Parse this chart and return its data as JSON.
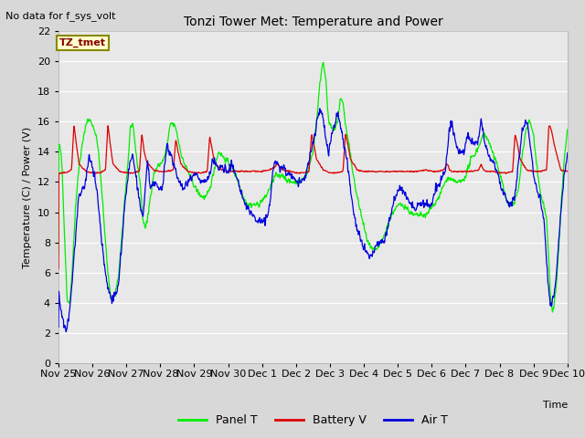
{
  "title": "Tonzi Tower Met: Temperature and Power",
  "ylabel": "Temperature (C) / Power (V)",
  "xlabel": "Time",
  "no_data_text": "No data for f_sys_volt",
  "legend_label_text": "TZ_tmet",
  "ylim": [
    0,
    22
  ],
  "yticks": [
    0,
    2,
    4,
    6,
    8,
    10,
    12,
    14,
    16,
    18,
    20,
    22
  ],
  "xtick_labels": [
    "Nov 25",
    "Nov 26",
    "Nov 27",
    "Nov 28",
    "Nov 29",
    "Nov 30",
    "Dec 1",
    "Dec 2",
    "Dec 3",
    "Dec 4",
    "Dec 5",
    "Dec 6",
    "Dec 7",
    "Dec 8",
    "Dec 9",
    "Dec 10"
  ],
  "bg_color": "#d8d8d8",
  "plot_bg_color": "#e8e8e8",
  "green_color": "#00ee00",
  "red_color": "#dd0000",
  "blue_color": "#0000dd",
  "legend_items": [
    "Panel T",
    "Battery V",
    "Air T"
  ],
  "keypoints_panel": [
    [
      0.0,
      14.5
    ],
    [
      0.05,
      14.2
    ],
    [
      0.1,
      13.0
    ],
    [
      0.18,
      8.0
    ],
    [
      0.25,
      4.2
    ],
    [
      0.33,
      4.0
    ],
    [
      0.42,
      7.0
    ],
    [
      0.5,
      10.5
    ],
    [
      0.6,
      13.0
    ],
    [
      0.7,
      14.5
    ],
    [
      0.82,
      16.0
    ],
    [
      0.9,
      16.1
    ],
    [
      0.95,
      16.0
    ],
    [
      1.05,
      15.5
    ],
    [
      1.15,
      14.5
    ],
    [
      1.25,
      12.0
    ],
    [
      1.35,
      9.0
    ],
    [
      1.45,
      6.0
    ],
    [
      1.55,
      4.2
    ],
    [
      1.65,
      4.5
    ],
    [
      1.75,
      5.5
    ],
    [
      1.85,
      8.0
    ],
    [
      1.95,
      11.0
    ],
    [
      2.05,
      13.5
    ],
    [
      2.12,
      15.8
    ],
    [
      2.2,
      15.5
    ],
    [
      2.3,
      13.5
    ],
    [
      2.4,
      12.0
    ],
    [
      2.48,
      9.5
    ],
    [
      2.55,
      9.0
    ],
    [
      2.62,
      9.5
    ],
    [
      2.7,
      11.0
    ],
    [
      2.8,
      12.5
    ],
    [
      2.9,
      13.0
    ],
    [
      3.0,
      13.2
    ],
    [
      3.1,
      13.5
    ],
    [
      3.2,
      14.5
    ],
    [
      3.3,
      15.9
    ],
    [
      3.38,
      15.8
    ],
    [
      3.45,
      15.6
    ],
    [
      3.55,
      14.5
    ],
    [
      3.65,
      13.5
    ],
    [
      3.75,
      13.0
    ],
    [
      3.85,
      12.5
    ],
    [
      3.95,
      12.0
    ],
    [
      4.05,
      11.5
    ],
    [
      4.15,
      11.2
    ],
    [
      4.25,
      11.0
    ],
    [
      4.35,
      11.0
    ],
    [
      4.45,
      11.5
    ],
    [
      4.55,
      12.5
    ],
    [
      4.65,
      13.5
    ],
    [
      4.72,
      14.0
    ],
    [
      4.8,
      13.8
    ],
    [
      4.9,
      13.5
    ],
    [
      5.0,
      13.3
    ],
    [
      5.1,
      13.0
    ],
    [
      5.2,
      12.5
    ],
    [
      5.3,
      12.0
    ],
    [
      5.4,
      11.2
    ],
    [
      5.5,
      10.8
    ],
    [
      5.6,
      10.5
    ],
    [
      5.7,
      10.5
    ],
    [
      5.8,
      10.5
    ],
    [
      5.9,
      10.5
    ],
    [
      6.0,
      10.8
    ],
    [
      6.1,
      11.0
    ],
    [
      6.2,
      11.5
    ],
    [
      6.3,
      12.0
    ],
    [
      6.4,
      12.5
    ],
    [
      6.5,
      12.3
    ],
    [
      6.6,
      12.5
    ],
    [
      6.7,
      12.2
    ],
    [
      6.8,
      12.0
    ],
    [
      6.9,
      12.0
    ],
    [
      7.0,
      12.0
    ],
    [
      7.1,
      12.0
    ],
    [
      7.2,
      12.2
    ],
    [
      7.3,
      12.5
    ],
    [
      7.4,
      13.2
    ],
    [
      7.5,
      14.0
    ],
    [
      7.62,
      16.5
    ],
    [
      7.72,
      19.0
    ],
    [
      7.8,
      20.1
    ],
    [
      7.88,
      18.5
    ],
    [
      7.95,
      16.0
    ],
    [
      8.05,
      15.5
    ],
    [
      8.15,
      15.5
    ],
    [
      8.22,
      16.0
    ],
    [
      8.3,
      17.5
    ],
    [
      8.38,
      17.3
    ],
    [
      8.45,
      15.8
    ],
    [
      8.55,
      14.5
    ],
    [
      8.65,
      13.0
    ],
    [
      8.75,
      11.5
    ],
    [
      8.85,
      10.5
    ],
    [
      8.95,
      9.5
    ],
    [
      9.05,
      8.5
    ],
    [
      9.15,
      7.8
    ],
    [
      9.25,
      7.5
    ],
    [
      9.35,
      7.5
    ],
    [
      9.45,
      7.8
    ],
    [
      9.55,
      8.2
    ],
    [
      9.65,
      8.8
    ],
    [
      9.75,
      9.5
    ],
    [
      9.85,
      10.0
    ],
    [
      9.95,
      10.3
    ],
    [
      10.05,
      10.5
    ],
    [
      10.15,
      10.5
    ],
    [
      10.25,
      10.3
    ],
    [
      10.35,
      10.0
    ],
    [
      10.45,
      9.8
    ],
    [
      10.55,
      9.8
    ],
    [
      10.65,
      9.8
    ],
    [
      10.75,
      9.8
    ],
    [
      10.85,
      9.8
    ],
    [
      10.95,
      10.2
    ],
    [
      11.05,
      10.5
    ],
    [
      11.15,
      10.8
    ],
    [
      11.25,
      11.2
    ],
    [
      11.35,
      11.8
    ],
    [
      11.45,
      12.2
    ],
    [
      11.55,
      12.2
    ],
    [
      11.65,
      12.0
    ],
    [
      11.75,
      12.0
    ],
    [
      11.85,
      12.0
    ],
    [
      11.95,
      12.2
    ],
    [
      12.05,
      12.8
    ],
    [
      12.15,
      13.5
    ],
    [
      12.25,
      13.8
    ],
    [
      12.35,
      14.2
    ],
    [
      12.45,
      14.8
    ],
    [
      12.55,
      15.2
    ],
    [
      12.65,
      14.8
    ],
    [
      12.75,
      14.2
    ],
    [
      12.85,
      13.5
    ],
    [
      12.95,
      13.0
    ],
    [
      13.05,
      12.2
    ],
    [
      13.15,
      11.2
    ],
    [
      13.25,
      10.5
    ],
    [
      13.35,
      10.5
    ],
    [
      13.45,
      10.8
    ],
    [
      13.55,
      11.5
    ],
    [
      13.65,
      13.5
    ],
    [
      13.75,
      15.2
    ],
    [
      13.85,
      16.0
    ],
    [
      13.92,
      15.8
    ],
    [
      14.0,
      15.0
    ],
    [
      14.1,
      13.0
    ],
    [
      14.2,
      11.2
    ],
    [
      14.3,
      10.5
    ],
    [
      14.38,
      9.5
    ],
    [
      14.45,
      6.5
    ],
    [
      14.5,
      4.2
    ],
    [
      14.55,
      3.5
    ],
    [
      14.6,
      3.8
    ],
    [
      14.68,
      5.5
    ],
    [
      14.75,
      8.0
    ],
    [
      14.82,
      11.0
    ],
    [
      14.9,
      13.5
    ],
    [
      15.0,
      15.5
    ]
  ],
  "keypoints_air": [
    [
      0.0,
      4.7
    ],
    [
      0.05,
      3.8
    ],
    [
      0.1,
      3.0
    ],
    [
      0.15,
      2.5
    ],
    [
      0.22,
      2.2
    ],
    [
      0.3,
      3.0
    ],
    [
      0.4,
      5.5
    ],
    [
      0.5,
      8.5
    ],
    [
      0.6,
      11.0
    ],
    [
      0.7,
      11.5
    ],
    [
      0.8,
      12.0
    ],
    [
      0.88,
      13.5
    ],
    [
      0.95,
      13.5
    ],
    [
      1.05,
      12.5
    ],
    [
      1.15,
      11.0
    ],
    [
      1.25,
      8.5
    ],
    [
      1.35,
      6.5
    ],
    [
      1.45,
      5.0
    ],
    [
      1.55,
      4.3
    ],
    [
      1.65,
      4.5
    ],
    [
      1.75,
      5.0
    ],
    [
      1.85,
      7.5
    ],
    [
      1.95,
      10.5
    ],
    [
      2.05,
      12.5
    ],
    [
      2.12,
      13.5
    ],
    [
      2.2,
      13.5
    ],
    [
      2.3,
      12.0
    ],
    [
      2.4,
      10.5
    ],
    [
      2.48,
      9.5
    ],
    [
      2.55,
      11.5
    ],
    [
      2.62,
      13.5
    ],
    [
      2.7,
      11.5
    ],
    [
      2.78,
      11.8
    ],
    [
      2.85,
      12.0
    ],
    [
      2.95,
      11.5
    ],
    [
      3.05,
      11.5
    ],
    [
      3.12,
      13.0
    ],
    [
      3.2,
      14.5
    ],
    [
      3.28,
      13.8
    ],
    [
      3.38,
      13.2
    ],
    [
      3.48,
      12.5
    ],
    [
      3.58,
      12.0
    ],
    [
      3.68,
      11.5
    ],
    [
      3.78,
      12.0
    ],
    [
      3.88,
      12.2
    ],
    [
      3.95,
      12.5
    ],
    [
      4.05,
      12.5
    ],
    [
      4.15,
      12.2
    ],
    [
      4.25,
      12.0
    ],
    [
      4.35,
      12.0
    ],
    [
      4.45,
      12.5
    ],
    [
      4.55,
      13.5
    ],
    [
      4.65,
      13.2
    ],
    [
      4.72,
      12.8
    ],
    [
      4.8,
      13.0
    ],
    [
      4.9,
      12.8
    ],
    [
      5.0,
      12.8
    ],
    [
      5.1,
      13.2
    ],
    [
      5.2,
      12.5
    ],
    [
      5.3,
      12.0
    ],
    [
      5.4,
      11.0
    ],
    [
      5.5,
      10.5
    ],
    [
      5.6,
      10.2
    ],
    [
      5.7,
      9.8
    ],
    [
      5.8,
      9.5
    ],
    [
      5.9,
      9.5
    ],
    [
      6.0,
      9.5
    ],
    [
      6.1,
      9.5
    ],
    [
      6.2,
      10.0
    ],
    [
      6.3,
      12.5
    ],
    [
      6.38,
      13.5
    ],
    [
      6.45,
      13.2
    ],
    [
      6.55,
      12.8
    ],
    [
      6.65,
      13.0
    ],
    [
      6.75,
      12.5
    ],
    [
      6.85,
      12.5
    ],
    [
      6.95,
      12.2
    ],
    [
      7.05,
      12.0
    ],
    [
      7.15,
      12.0
    ],
    [
      7.25,
      12.2
    ],
    [
      7.35,
      13.2
    ],
    [
      7.45,
      14.2
    ],
    [
      7.55,
      15.0
    ],
    [
      7.62,
      16.2
    ],
    [
      7.7,
      16.7
    ],
    [
      7.78,
      16.5
    ],
    [
      7.85,
      15.2
    ],
    [
      7.95,
      13.8
    ],
    [
      8.05,
      15.2
    ],
    [
      8.15,
      15.8
    ],
    [
      8.22,
      16.7
    ],
    [
      8.3,
      15.8
    ],
    [
      8.4,
      14.5
    ],
    [
      8.5,
      13.5
    ],
    [
      8.6,
      11.5
    ],
    [
      8.7,
      10.0
    ],
    [
      8.8,
      8.8
    ],
    [
      8.9,
      8.2
    ],
    [
      9.0,
      7.5
    ],
    [
      9.1,
      7.2
    ],
    [
      9.2,
      7.0
    ],
    [
      9.3,
      7.5
    ],
    [
      9.4,
      8.0
    ],
    [
      9.5,
      8.0
    ],
    [
      9.6,
      8.2
    ],
    [
      9.7,
      9.0
    ],
    [
      9.8,
      10.0
    ],
    [
      9.9,
      11.0
    ],
    [
      10.0,
      11.5
    ],
    [
      10.1,
      11.5
    ],
    [
      10.2,
      11.2
    ],
    [
      10.3,
      10.8
    ],
    [
      10.4,
      10.5
    ],
    [
      10.5,
      10.2
    ],
    [
      10.6,
      10.5
    ],
    [
      10.7,
      10.5
    ],
    [
      10.8,
      10.5
    ],
    [
      10.9,
      10.5
    ],
    [
      11.0,
      10.5
    ],
    [
      11.1,
      11.5
    ],
    [
      11.2,
      11.8
    ],
    [
      11.3,
      12.2
    ],
    [
      11.4,
      12.8
    ],
    [
      11.5,
      15.2
    ],
    [
      11.58,
      16.0
    ],
    [
      11.65,
      15.2
    ],
    [
      11.75,
      14.2
    ],
    [
      11.85,
      13.8
    ],
    [
      11.95,
      14.0
    ],
    [
      12.05,
      15.2
    ],
    [
      12.15,
      14.8
    ],
    [
      12.25,
      14.5
    ],
    [
      12.35,
      14.5
    ],
    [
      12.45,
      16.0
    ],
    [
      12.55,
      14.8
    ],
    [
      12.65,
      13.8
    ],
    [
      12.75,
      13.5
    ],
    [
      12.85,
      13.2
    ],
    [
      12.95,
      12.5
    ],
    [
      13.05,
      11.5
    ],
    [
      13.15,
      11.0
    ],
    [
      13.25,
      10.5
    ],
    [
      13.35,
      10.5
    ],
    [
      13.45,
      11.0
    ],
    [
      13.55,
      13.2
    ],
    [
      13.65,
      15.2
    ],
    [
      13.75,
      16.0
    ],
    [
      13.82,
      15.8
    ],
    [
      13.9,
      14.5
    ],
    [
      14.0,
      12.5
    ],
    [
      14.1,
      11.5
    ],
    [
      14.2,
      10.8
    ],
    [
      14.3,
      9.5
    ],
    [
      14.38,
      6.8
    ],
    [
      14.45,
      4.5
    ],
    [
      14.52,
      3.8
    ],
    [
      14.58,
      4.2
    ],
    [
      14.65,
      5.5
    ],
    [
      14.72,
      7.5
    ],
    [
      14.8,
      10.0
    ],
    [
      14.9,
      12.5
    ],
    [
      15.0,
      14.0
    ]
  ],
  "keypoints_batt": [
    [
      0.0,
      12.6
    ],
    [
      0.2,
      12.6
    ],
    [
      0.38,
      12.8
    ],
    [
      0.45,
      15.8
    ],
    [
      0.52,
      14.5
    ],
    [
      0.6,
      13.2
    ],
    [
      0.8,
      12.7
    ],
    [
      1.0,
      12.6
    ],
    [
      1.2,
      12.6
    ],
    [
      1.38,
      12.8
    ],
    [
      1.45,
      15.8
    ],
    [
      1.52,
      14.5
    ],
    [
      1.6,
      13.2
    ],
    [
      1.8,
      12.7
    ],
    [
      2.0,
      12.6
    ],
    [
      2.2,
      12.6
    ],
    [
      2.38,
      12.7
    ],
    [
      2.45,
      15.2
    ],
    [
      2.52,
      14.0
    ],
    [
      2.6,
      13.3
    ],
    [
      2.8,
      12.8
    ],
    [
      3.0,
      12.7
    ],
    [
      3.2,
      12.7
    ],
    [
      3.38,
      12.8
    ],
    [
      3.45,
      14.8
    ],
    [
      3.52,
      14.0
    ],
    [
      3.6,
      13.2
    ],
    [
      3.8,
      12.7
    ],
    [
      4.0,
      12.6
    ],
    [
      4.2,
      12.6
    ],
    [
      4.38,
      12.7
    ],
    [
      4.45,
      15.0
    ],
    [
      4.52,
      14.2
    ],
    [
      4.6,
      13.2
    ],
    [
      4.8,
      12.8
    ],
    [
      5.0,
      12.7
    ],
    [
      5.2,
      12.7
    ],
    [
      5.4,
      12.7
    ],
    [
      5.6,
      12.7
    ],
    [
      5.8,
      12.7
    ],
    [
      6.0,
      12.7
    ],
    [
      6.2,
      12.8
    ],
    [
      6.38,
      13.0
    ],
    [
      6.45,
      13.2
    ],
    [
      6.52,
      13.0
    ],
    [
      6.6,
      12.8
    ],
    [
      6.8,
      12.7
    ],
    [
      7.0,
      12.6
    ],
    [
      7.2,
      12.6
    ],
    [
      7.38,
      12.7
    ],
    [
      7.45,
      15.2
    ],
    [
      7.52,
      14.5
    ],
    [
      7.6,
      13.5
    ],
    [
      7.8,
      12.8
    ],
    [
      8.0,
      12.6
    ],
    [
      8.2,
      12.6
    ],
    [
      8.38,
      12.7
    ],
    [
      8.45,
      15.2
    ],
    [
      8.52,
      14.5
    ],
    [
      8.6,
      13.5
    ],
    [
      8.8,
      12.8
    ],
    [
      9.0,
      12.7
    ],
    [
      9.2,
      12.7
    ],
    [
      9.4,
      12.7
    ],
    [
      9.6,
      12.7
    ],
    [
      9.8,
      12.7
    ],
    [
      10.0,
      12.7
    ],
    [
      10.2,
      12.7
    ],
    [
      10.4,
      12.7
    ],
    [
      10.6,
      12.7
    ],
    [
      10.8,
      12.8
    ],
    [
      11.0,
      12.7
    ],
    [
      11.2,
      12.7
    ],
    [
      11.35,
      12.8
    ],
    [
      11.45,
      13.2
    ],
    [
      11.52,
      12.8
    ],
    [
      11.6,
      12.7
    ],
    [
      11.8,
      12.7
    ],
    [
      12.0,
      12.7
    ],
    [
      12.2,
      12.7
    ],
    [
      12.38,
      12.8
    ],
    [
      12.45,
      13.2
    ],
    [
      12.52,
      12.8
    ],
    [
      12.6,
      12.7
    ],
    [
      12.8,
      12.7
    ],
    [
      13.0,
      12.6
    ],
    [
      13.2,
      12.6
    ],
    [
      13.38,
      12.7
    ],
    [
      13.45,
      15.2
    ],
    [
      13.52,
      14.5
    ],
    [
      13.6,
      13.5
    ],
    [
      13.8,
      12.8
    ],
    [
      14.0,
      12.7
    ],
    [
      14.2,
      12.7
    ],
    [
      14.38,
      12.8
    ],
    [
      14.45,
      15.8
    ],
    [
      14.52,
      15.5
    ],
    [
      14.6,
      14.5
    ],
    [
      14.8,
      12.8
    ],
    [
      15.0,
      12.7
    ]
  ]
}
